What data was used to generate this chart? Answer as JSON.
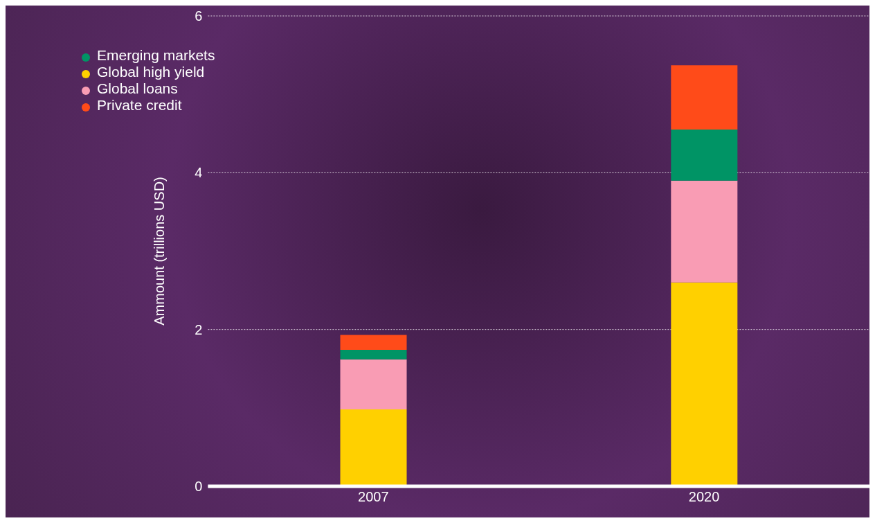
{
  "chart_data": {
    "type": "bar",
    "ylabel": "Ammount (trillions USD)",
    "categories": [
      "2007",
      "2020"
    ],
    "stacked": true,
    "series": [
      {
        "name": "Global high yield",
        "color": "#ffd000",
        "values": [
          0.98,
          2.6
        ]
      },
      {
        "name": "Global loans",
        "color": "#f99cb4",
        "values": [
          0.64,
          1.3
        ]
      },
      {
        "name": "Emerging markets",
        "color": "#009465",
        "values": [
          0.12,
          0.65
        ]
      },
      {
        "name": "Private credit",
        "color": "#ff4b19",
        "values": [
          0.19,
          0.82
        ]
      }
    ],
    "ylim": [
      0,
      6
    ],
    "yticks": [
      0,
      2,
      4,
      6
    ],
    "grid": "y",
    "legend": "top left"
  }
}
